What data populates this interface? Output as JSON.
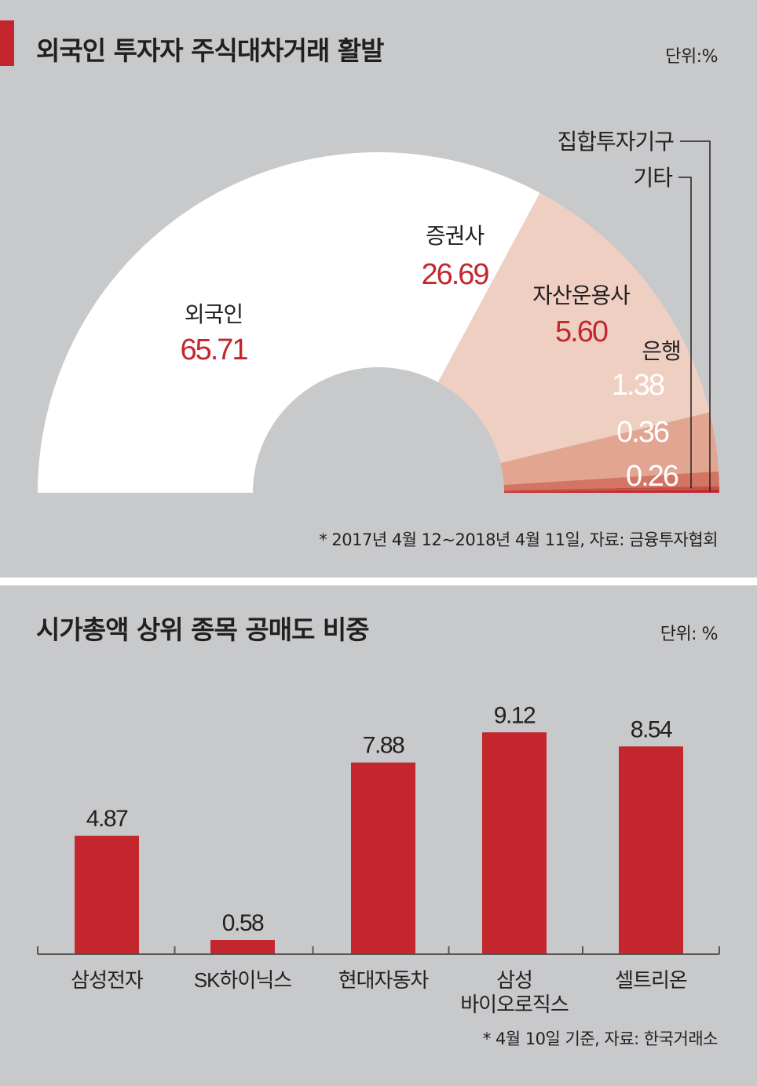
{
  "charts": [
    {
      "type": "pie",
      "subtype": "half-donut",
      "title": "외국인 투자자 주식대차거래 활발",
      "unit_label": "단위:%",
      "note": "* 2017년 4월 12~2018년 4월 11일, 자료: 금융투자협회",
      "slices": [
        {
          "name": "외국인",
          "value": 65.71,
          "value_label": "65.71",
          "color": "#ffffff",
          "value_color": "#c4262e"
        },
        {
          "name": "증권사",
          "value": 26.69,
          "value_label": "26.69",
          "color": "#f0cfc3",
          "value_color": "#c4262e"
        },
        {
          "name": "자산운용사",
          "value": 5.6,
          "value_label": "5.60",
          "color": "#e2a592",
          "value_color": "#c4262e"
        },
        {
          "name": "은행",
          "value": 1.38,
          "value_label": "1.38",
          "color": "#d47462",
          "value_color": "#ffffff"
        },
        {
          "name": "기타",
          "value": 0.36,
          "value_label": "0.36",
          "color": "#c84f45",
          "value_color": "#ffffff"
        },
        {
          "name": "집합투자기구",
          "value": 0.26,
          "value_label": "0.26",
          "color": "#c4262e",
          "value_color": "#ffffff"
        }
      ]
    },
    {
      "type": "bar",
      "title": "시가총액 상위 종목 공매도 비중",
      "unit_label": "단위: %",
      "note": "* 4월 10일 기준, 자료: 한국거래소",
      "categories": [
        [
          "삼성전자"
        ],
        [
          "SK하이닉스"
        ],
        [
          "현대자동차"
        ],
        [
          "삼성",
          "바이오로직스"
        ],
        [
          "셀트리온"
        ]
      ],
      "values": [
        4.87,
        0.58,
        7.88,
        9.12,
        8.54
      ],
      "value_labels": [
        "4.87",
        "0.58",
        "7.88",
        "9.12",
        "8.54"
      ],
      "bar_color": "#c4262e",
      "ylim": [
        0,
        10
      ]
    }
  ]
}
